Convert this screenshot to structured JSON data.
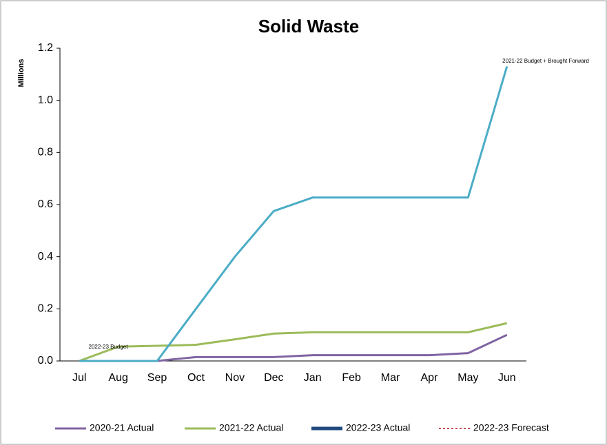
{
  "chart_data": {
    "type": "line",
    "title": "Solid Waste",
    "ylabel": "Millions",
    "categories": [
      "Jul",
      "Aug",
      "Sep",
      "Oct",
      "Nov",
      "Dec",
      "Jan",
      "Feb",
      "Mar",
      "Apr",
      "May",
      "Jun"
    ],
    "series": [
      {
        "name": "2020-21 Actual",
        "color": "#8064a2",
        "values": [
          0,
          0,
          0,
          0.015,
          0.015,
          0.015,
          0.022,
          0.022,
          0.022,
          0.022,
          0.03,
          0.1
        ]
      },
      {
        "name": "2021-22 Actual",
        "color": "#9bbb59",
        "values": [
          0,
          0.055,
          0.058,
          0.062,
          0.083,
          0.105,
          0.11,
          0.11,
          0.11,
          0.11,
          0.11,
          0.145
        ]
      },
      {
        "name": "2022-23 Actual",
        "color": "#1f497d",
        "values": [
          null,
          null,
          null,
          null,
          null,
          null,
          null,
          null,
          null,
          null,
          null,
          null
        ]
      },
      {
        "name": "2022-23 Forecast",
        "color": "#c0504d",
        "dashed": true,
        "values": [
          null,
          null,
          null,
          null,
          null,
          null,
          null,
          null,
          null,
          null,
          null,
          null
        ]
      },
      {
        "color": "#4bacc6",
        "values": [
          0,
          0,
          0,
          0.2,
          0.4,
          0.575,
          0.627,
          0.627,
          0.627,
          0.627,
          0.627,
          1.13
        ]
      }
    ],
    "annotations": [
      {
        "text": "2022-23 Budget"
      },
      {
        "text": "2021-22 Budget + Brought Forward"
      }
    ],
    "ylim": [
      0,
      1.2
    ],
    "yticks": [
      {
        "value": 0,
        "label": "0.0"
      },
      0.2,
      0.4,
      0.6,
      0.8,
      {
        "value": 1,
        "label": "1.0"
      },
      1.2
    ],
    "grid": false,
    "legend": "bottom"
  }
}
